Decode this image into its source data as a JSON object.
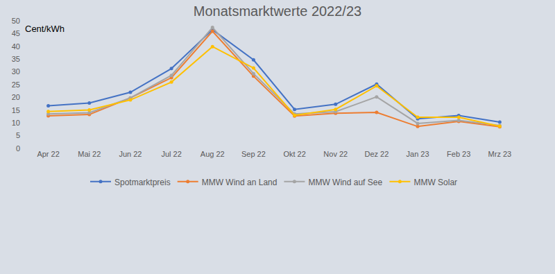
{
  "chart_data": {
    "type": "line",
    "title": "Monatsmarktwerte 2022/23",
    "y_label": "Cent/kWh",
    "categories": [
      "Apr 22",
      "Mai 22",
      "Jun 22",
      "Jul 22",
      "Aug 22",
      "Sep 22",
      "Okt 22",
      "Nov 22",
      "Dez 22",
      "Jan 23",
      "Feb 23",
      "Mrz 23"
    ],
    "series": [
      {
        "name": "Spotmarktpreis",
        "color": "#4472c4",
        "values": [
          16.7,
          17.8,
          22.0,
          31.3,
          46.5,
          34.7,
          15.3,
          17.3,
          25.2,
          11.6,
          12.9,
          10.3
        ]
      },
      {
        "name": "MMW Wind an Land",
        "color": "#ed7d31",
        "values": [
          12.8,
          13.3,
          19.8,
          27.7,
          45.9,
          28.3,
          12.7,
          13.8,
          14.1,
          8.6,
          10.6,
          8.5
        ]
      },
      {
        "name": "MMW Wind auf See",
        "color": "#a5a5a5",
        "values": [
          13.5,
          14.0,
          19.8,
          28.6,
          47.4,
          29.3,
          13.5,
          14.4,
          20.2,
          9.8,
          11.0,
          9.0
        ]
      },
      {
        "name": "MMW Solar",
        "color": "#ffc000",
        "values": [
          14.5,
          15.1,
          19.0,
          26.0,
          39.9,
          31.5,
          13.0,
          15.3,
          24.5,
          12.2,
          12.2,
          8.7
        ]
      }
    ],
    "ylim": [
      0,
      50
    ],
    "yticks": [
      0,
      5,
      10,
      15,
      20,
      25,
      30,
      35,
      40,
      45,
      50
    ],
    "grid": false,
    "legend": "bottom",
    "marker": "circle"
  }
}
